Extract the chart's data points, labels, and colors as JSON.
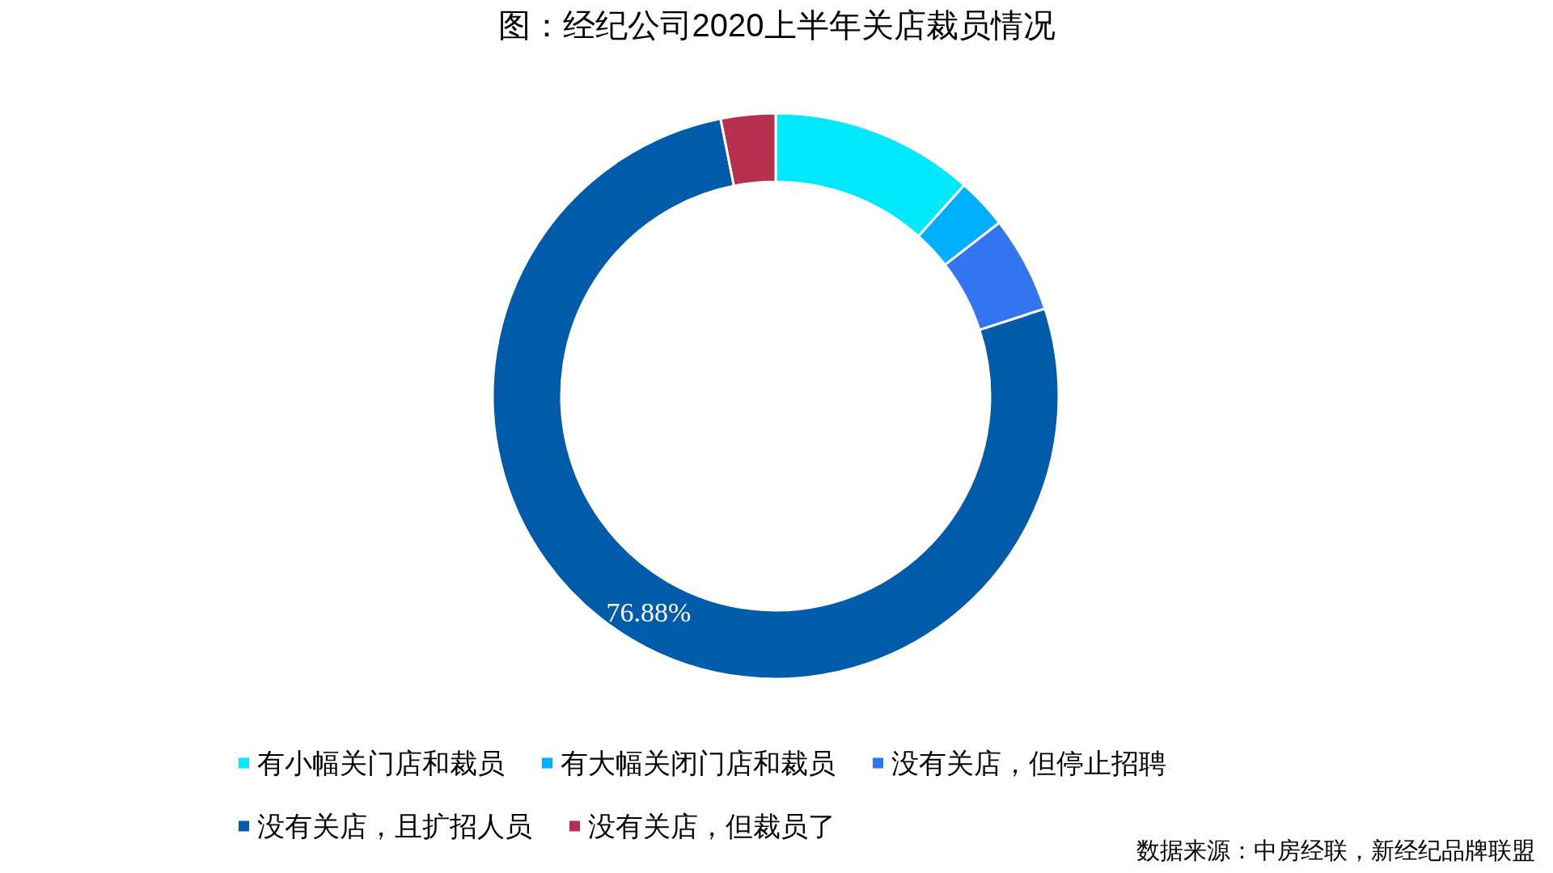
{
  "chart_data": {
    "type": "donut",
    "title": "图：经纪公司2020上半年关店裁员情况",
    "categories": [
      "有小幅关门店和裁员",
      "有大幅关闭门店和裁员",
      "没有关店，但停止招聘",
      "没有关店，且扩招人员",
      "没有关店，但裁员了"
    ],
    "values": [
      11.6,
      2.9,
      5.5,
      76.88,
      3.12
    ],
    "colors": [
      "#00e8fb",
      "#00aeff",
      "#3375f0",
      "#005bab",
      "#b8304f"
    ],
    "value_labels": [
      null,
      null,
      null,
      "76.88%",
      null
    ],
    "legend": "bottom",
    "annotations": [
      "数据来源：中房经联，新经纪品牌联盟"
    ]
  }
}
